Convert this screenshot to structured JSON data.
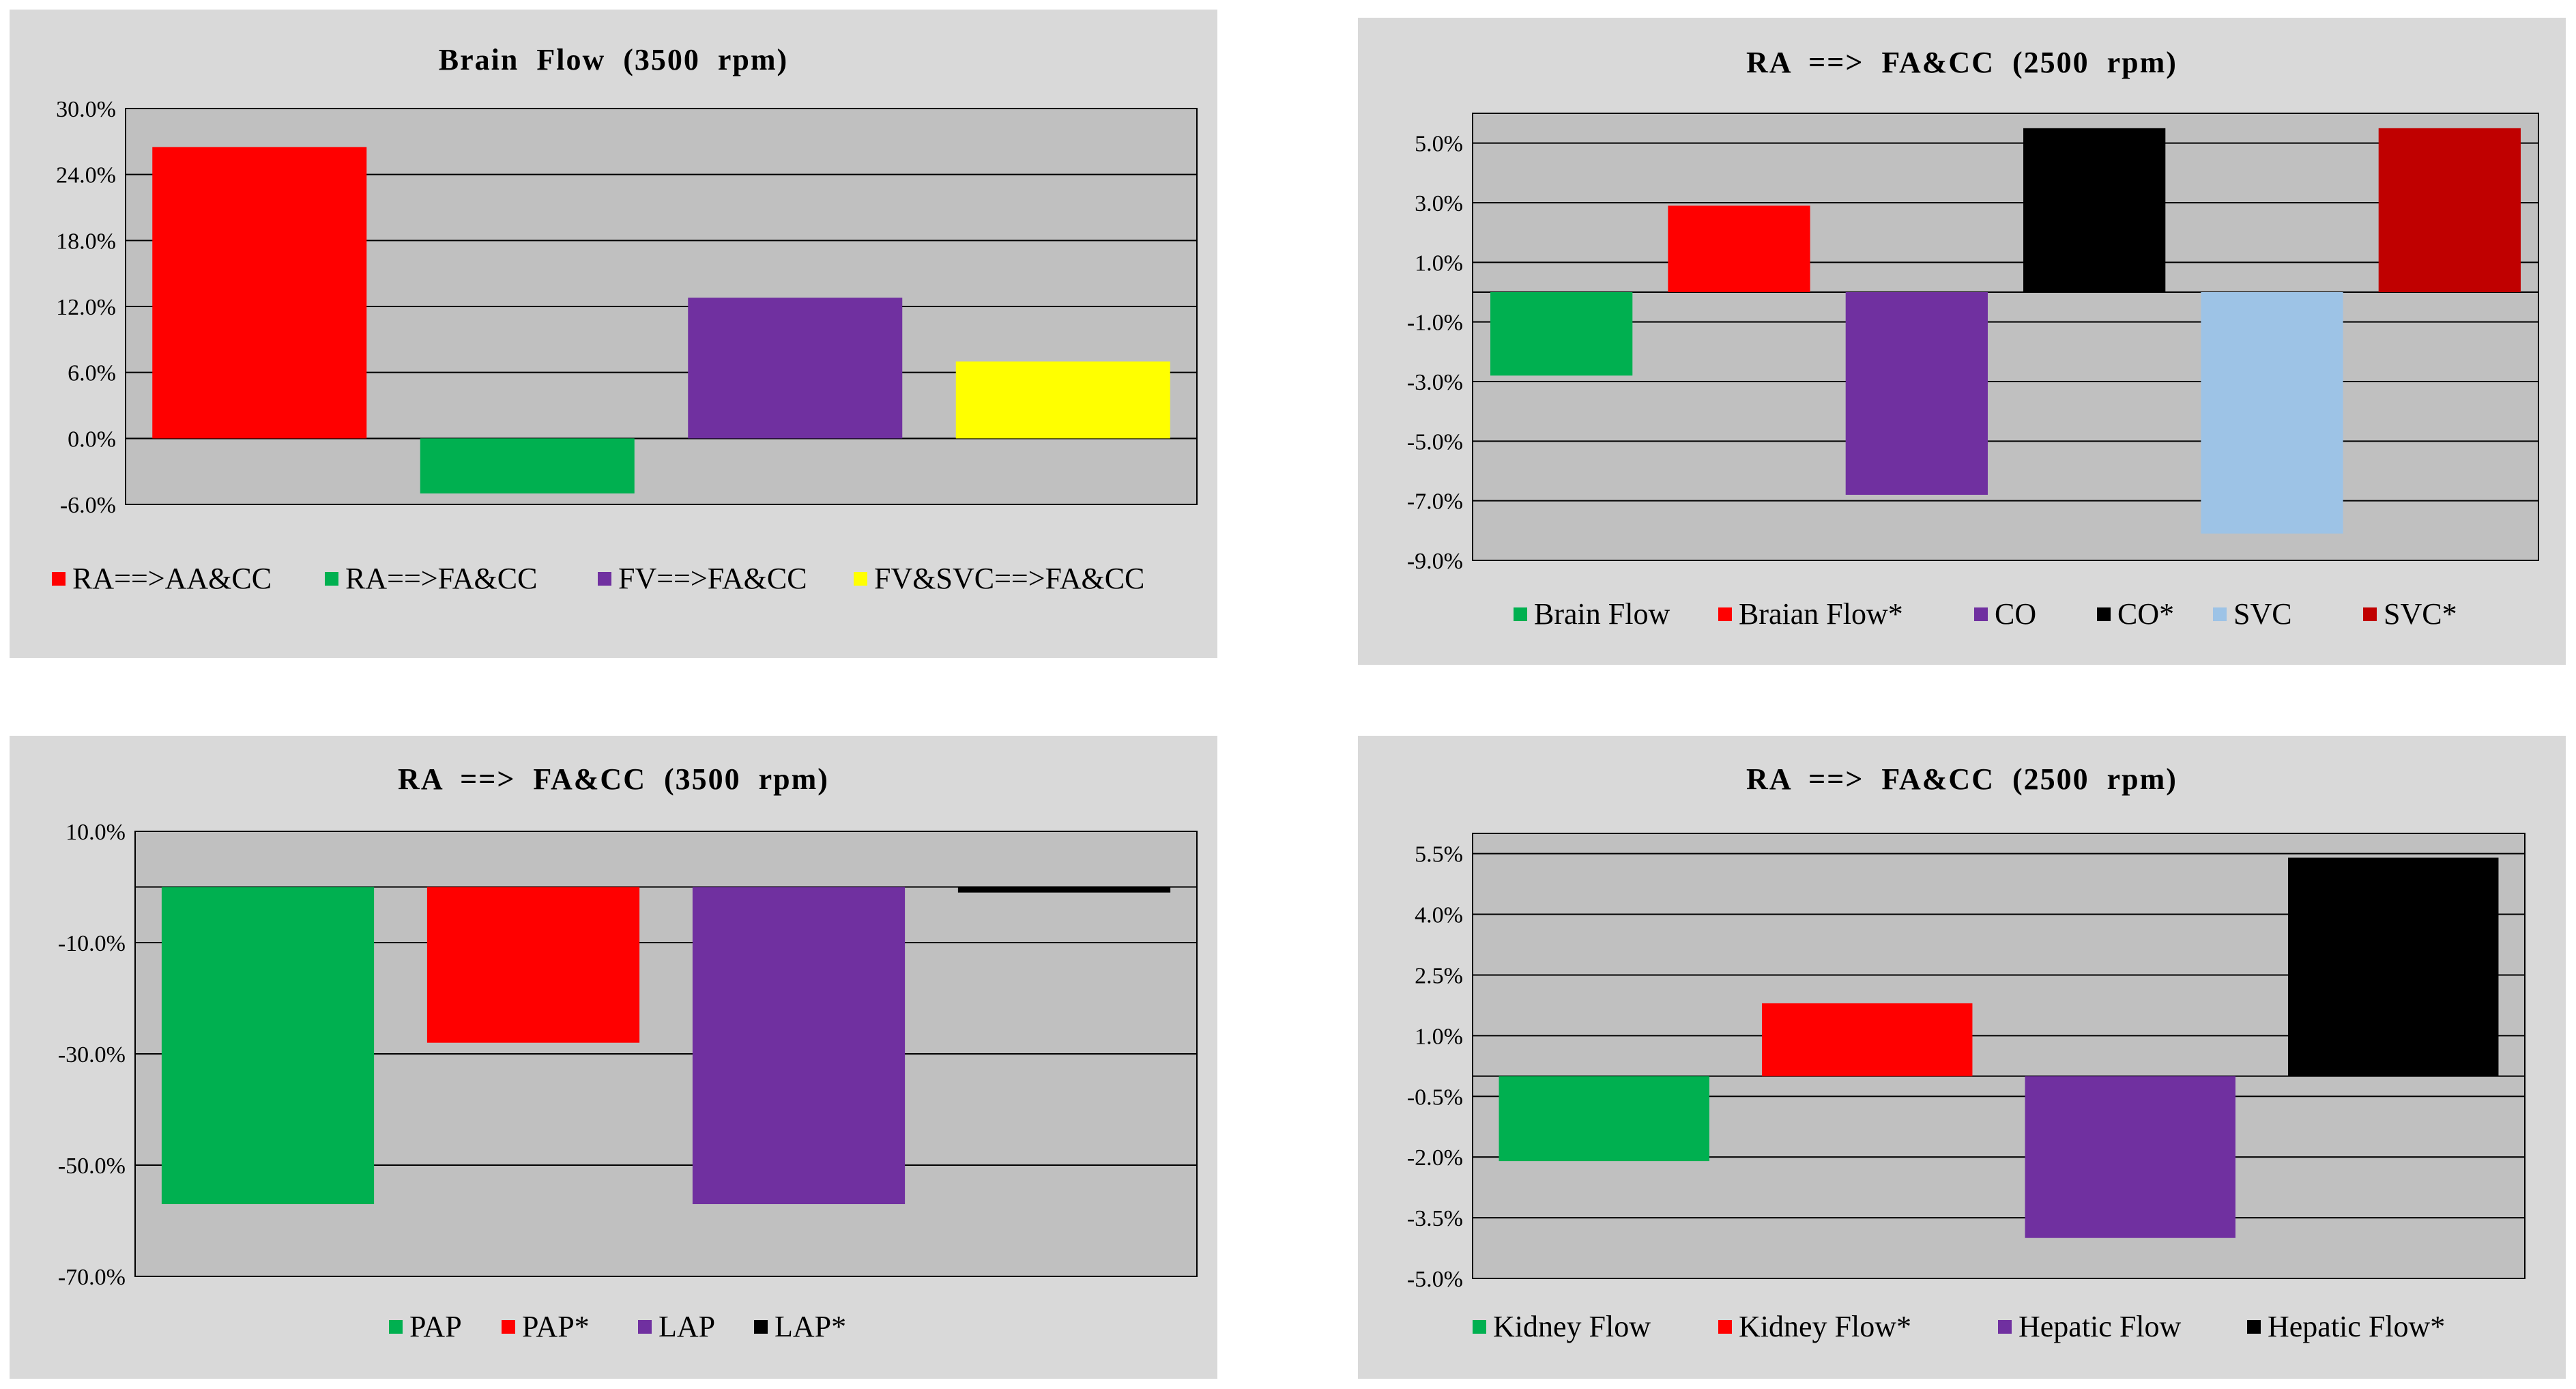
{
  "colors": {
    "panel_bg": "#d9d9d9",
    "plot_bg": "#c0c0c0",
    "grid": "#000000",
    "red": "#ff0000",
    "green": "#00b050",
    "purple": "#7030a0",
    "yellow": "#ffff00",
    "black": "#000000",
    "light_blue": "#9dc3e6",
    "dark_red": "#c00000"
  },
  "chart_data": [
    {
      "type": "bar",
      "title": "Brain  Flow  (3500  rpm)",
      "categories": [
        "RA==>AA&CC",
        "RA==>FA&CC",
        "FV==>FA&CC",
        "FV&SVC==>FA&CC"
      ],
      "values": [
        26.5,
        -5.0,
        12.8,
        7.0
      ],
      "colors": [
        "#ff0000",
        "#00b050",
        "#7030a0",
        "#ffff00"
      ],
      "ylim": [
        -6.0,
        30.0
      ],
      "yticks": [
        30.0,
        24.0,
        18.0,
        12.0,
        6.0,
        0.0,
        -6.0
      ],
      "ytick_labels": [
        "30.0%",
        "24.0%",
        "18.0%",
        "12.0%",
        "6.0%",
        "0.0%",
        "-6.0%"
      ],
      "legend": [
        "RA==>AA&CC",
        "RA==>FA&CC",
        "FV==>FA&CC",
        "FV&SVC==>FA&CC"
      ],
      "legend_position": "bottom",
      "xlabel": "",
      "ylabel": ""
    },
    {
      "type": "bar",
      "title": "RA  ==>  FA&CC  (2500  rpm)",
      "categories": [
        "Brain Flow",
        "Braian Flow*",
        "CO",
        "CO*",
        "SVC",
        "SVC*"
      ],
      "values": [
        -2.8,
        2.9,
        -6.8,
        5.5,
        -8.1,
        5.5
      ],
      "colors": [
        "#00b050",
        "#ff0000",
        "#7030a0",
        "#000000",
        "#9dc3e6",
        "#c00000"
      ],
      "ylim": [
        -9.0,
        6.0
      ],
      "yticks": [
        5.0,
        3.0,
        1.0,
        -1.0,
        -3.0,
        -5.0,
        -7.0,
        -9.0
      ],
      "ytick_labels": [
        "5.0%",
        "3.0%",
        "1.0%",
        "-1.0%",
        "-3.0%",
        "-5.0%",
        "-7.0%",
        "-9.0%"
      ],
      "legend": [
        "Brain Flow",
        "Braian Flow*",
        "CO",
        "CO*",
        "SVC",
        "SVC*"
      ],
      "legend_position": "bottom",
      "xlabel": "",
      "ylabel": ""
    },
    {
      "type": "bar",
      "title": "RA  ==>  FA&CC  (3500  rpm)",
      "categories": [
        "PAP",
        "PAP*",
        "LAP",
        "LAP*"
      ],
      "values": [
        -57.0,
        -28.0,
        -57.0,
        -1.0
      ],
      "colors": [
        "#00b050",
        "#ff0000",
        "#7030a0",
        "#000000"
      ],
      "ylim": [
        -70.0,
        10.0
      ],
      "yticks": [
        10.0,
        -10.0,
        -30.0,
        -50.0,
        -70.0
      ],
      "ytick_labels": [
        "10.0%",
        "-10.0%",
        "-30.0%",
        "-50.0%",
        "-70.0%"
      ],
      "legend": [
        "PAP",
        "PAP*",
        "LAP",
        "LAP*"
      ],
      "legend_position": "bottom",
      "xlabel": "",
      "ylabel": ""
    },
    {
      "type": "bar",
      "title": "RA  ==>  FA&CC  (2500  rpm)",
      "categories": [
        "Kidney Flow",
        "Kidney Flow*",
        "Hepatic Flow",
        "Hepatic Flow*"
      ],
      "values": [
        -2.1,
        1.8,
        -4.0,
        5.4
      ],
      "colors": [
        "#00b050",
        "#ff0000",
        "#7030a0",
        "#000000"
      ],
      "ylim": [
        -5.0,
        6.0
      ],
      "yticks": [
        5.5,
        4.0,
        2.5,
        1.0,
        -0.5,
        -2.0,
        -3.5,
        -5.0
      ],
      "ytick_labels": [
        "5.5%",
        "4.0%",
        "2.5%",
        "1.0%",
        "-0.5%",
        "-2.0%",
        "-3.5%",
        "-5.0%"
      ],
      "legend": [
        "Kidney Flow",
        "Kidney Flow*",
        "Hepatic Flow",
        "Hepatic Flow*"
      ],
      "legend_position": "bottom",
      "xlabel": "",
      "ylabel": ""
    }
  ]
}
